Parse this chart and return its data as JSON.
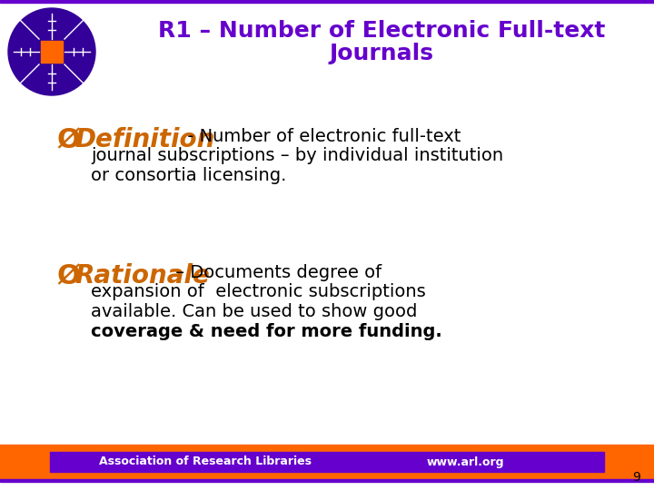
{
  "title_line1": "R1 – Number of Electronic Full-text",
  "title_line2": "Journals",
  "title_color": "#6600cc",
  "title_fontsize": 18,
  "bg_color": "#ffffff",
  "def_label": "Definition",
  "def_label_color": "#cc6600",
  "def_label_fontsize": 20,
  "def_body": " - Number of electronic full-text",
  "def_line2": "journal subscriptions – by individual institution",
  "def_line3": "or consortia licensing.",
  "rat_label": "Rationale",
  "rat_label_color": "#cc6600",
  "rat_label_fontsize": 20,
  "rat_body": " – Documents degree of",
  "rat_line2": "expansion of  electronic subscriptions",
  "rat_line3": "available. Can be used to show good",
  "rat_line4": "coverage & need for more funding.",
  "body_text_color": "#000000",
  "body_text_fontsize": 14,
  "footer_bg_color": "#ff6600",
  "footer_bar_color": "#6600cc",
  "footer_left_text": "Association of Research Libraries",
  "footer_right_text": "www.arl.org",
  "footer_text_color": "#ffffff",
  "footer_text_fontsize": 9,
  "page_number": "9",
  "logo_circle_color": "#330099",
  "logo_square_color": "#ff6600",
  "border_color": "#6600cc",
  "bullet_color": "#cc6600",
  "bullet_fontsize": 18
}
